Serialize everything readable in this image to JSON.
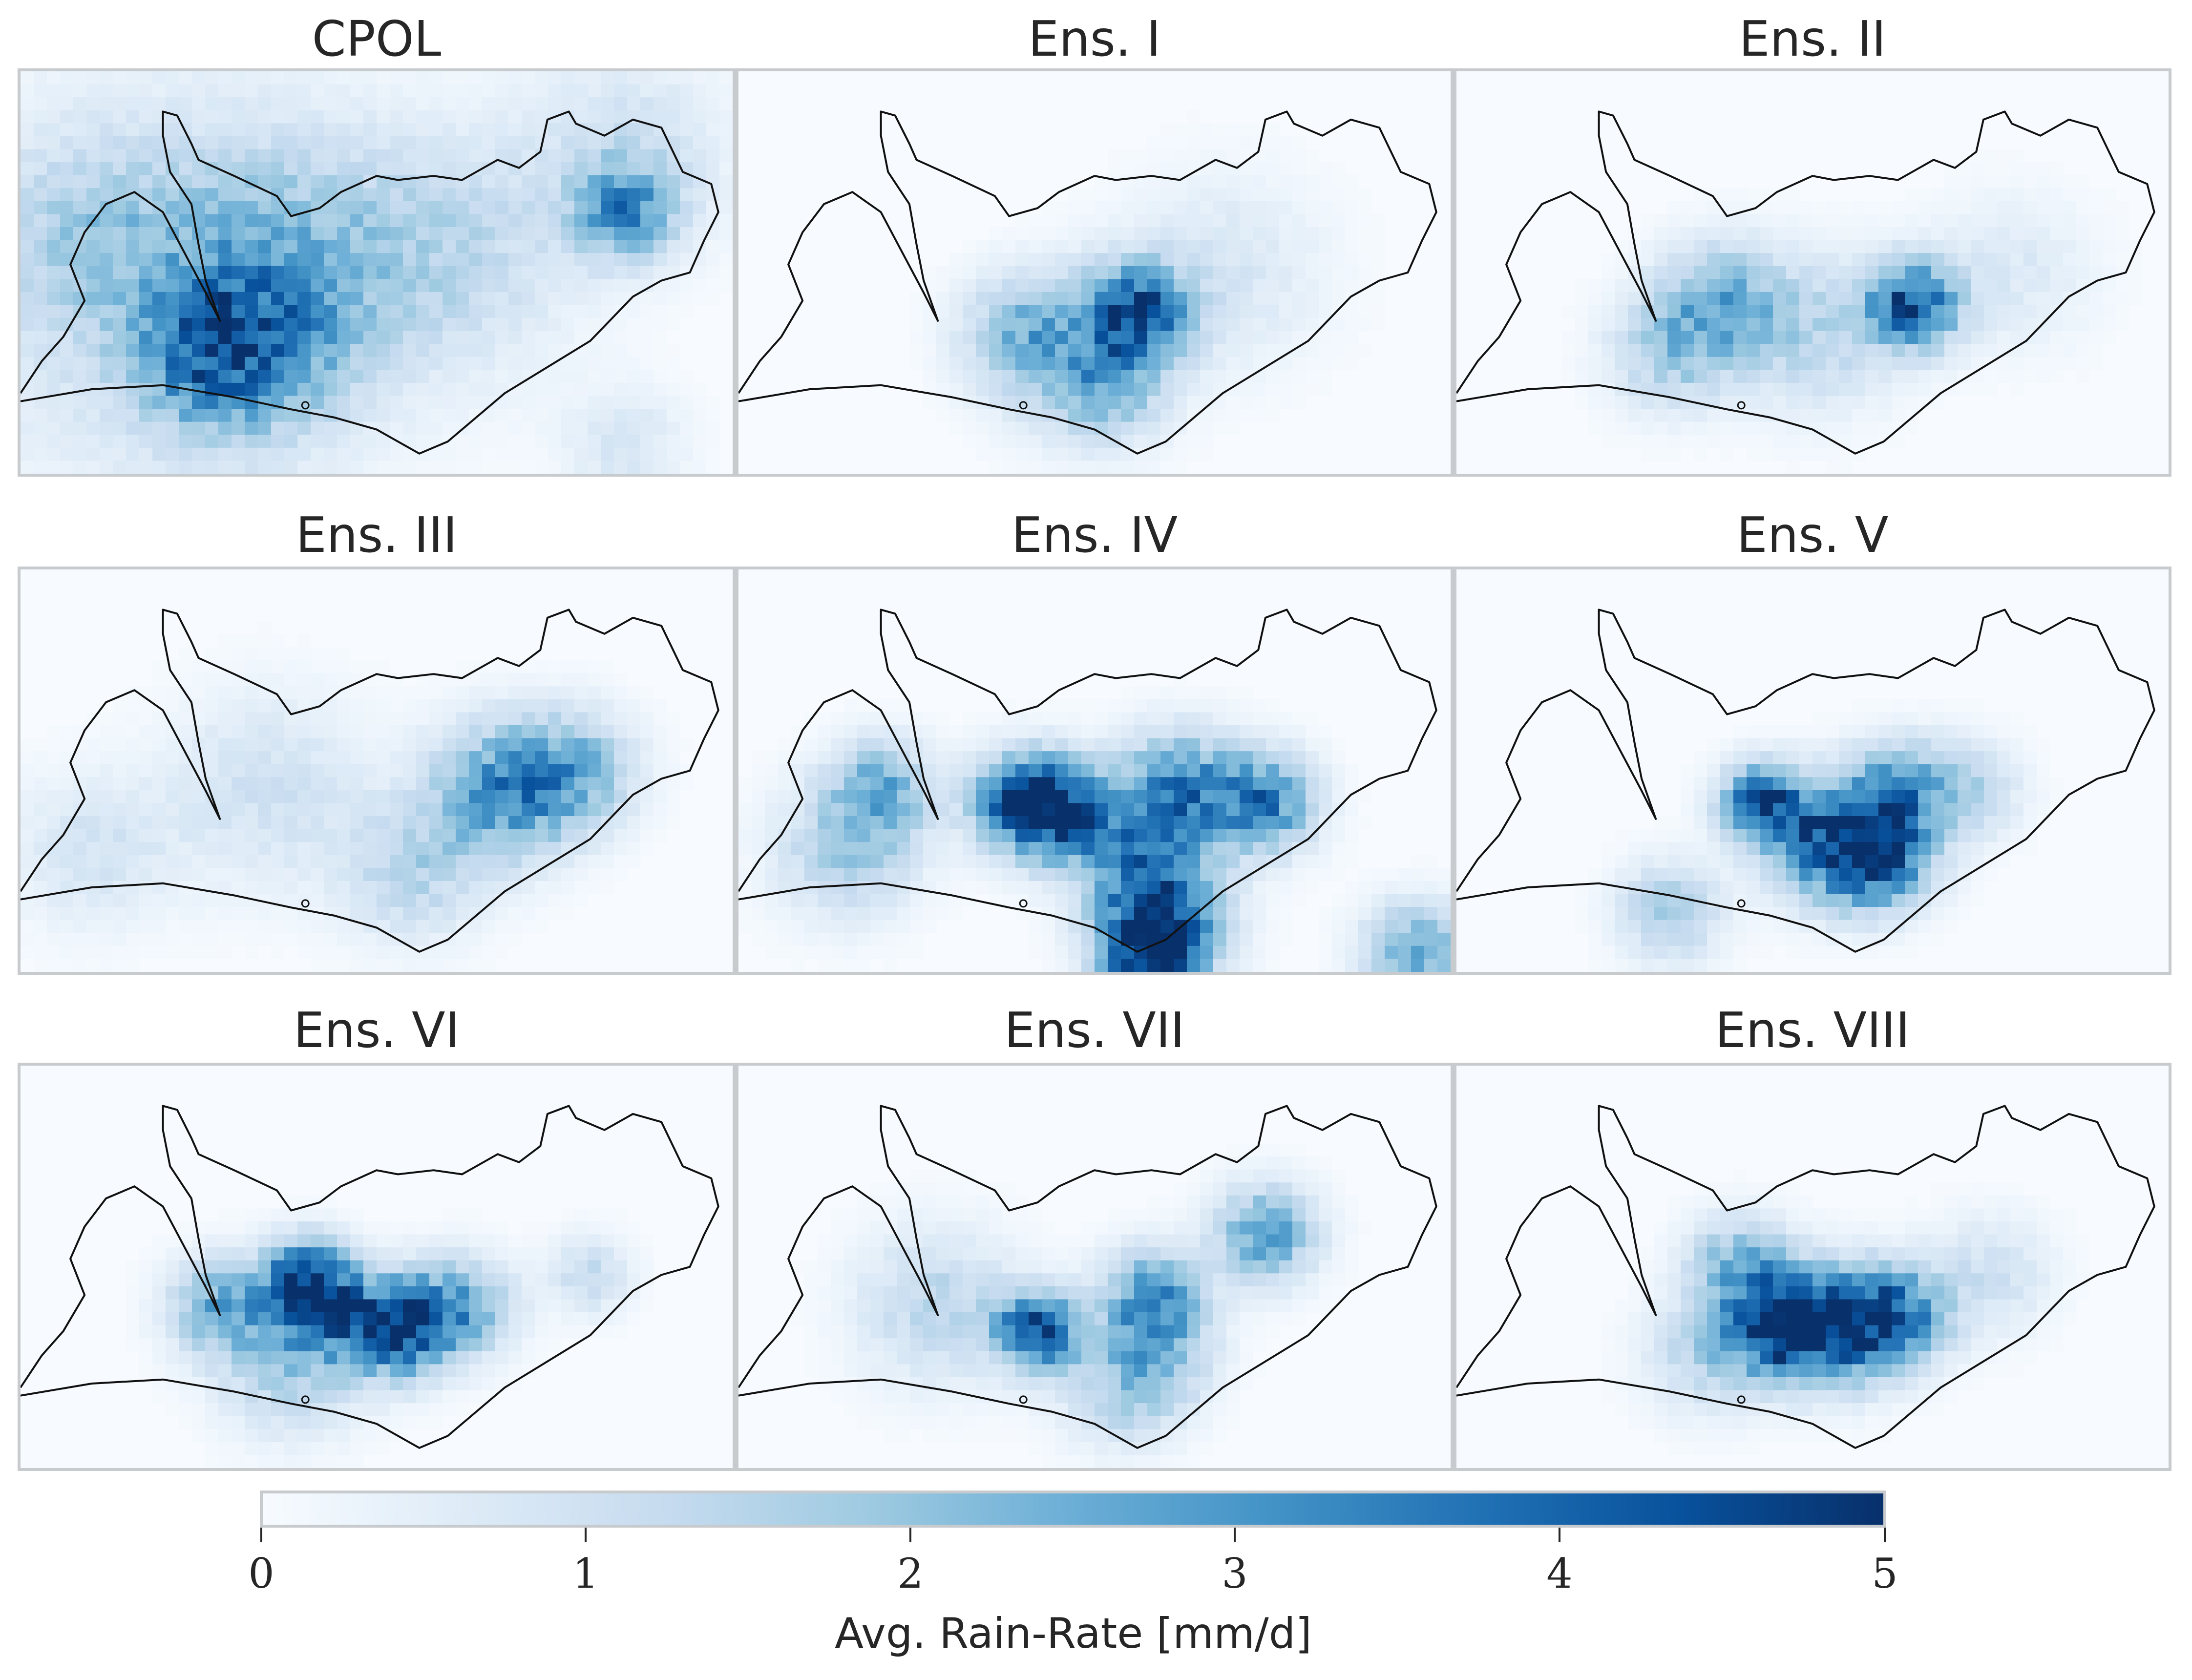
{
  "chart_data": {
    "type": "heatmap",
    "layout": "3x3 grid of map panels with shared colorbar",
    "colormap": "Blues",
    "panels": [
      {
        "title": "CPOL",
        "hotspots": [
          {
            "lon": 0.2,
            "lat": 0.55,
            "value": 1.0,
            "spread": 0.22
          },
          {
            "lon": 0.33,
            "lat": 0.68,
            "value": 2.2,
            "spread": 0.09
          },
          {
            "lon": 0.25,
            "lat": 0.72,
            "value": 1.6,
            "spread": 0.07
          },
          {
            "lon": 0.36,
            "lat": 0.45,
            "value": 1.3,
            "spread": 0.12
          },
          {
            "lon": 0.6,
            "lat": 0.45,
            "value": 1.2,
            "spread": 0.12
          },
          {
            "lon": 0.85,
            "lat": 0.35,
            "value": 2.6,
            "spread": 0.05
          },
          {
            "lon": 0.85,
            "lat": 0.2,
            "value": 1.0,
            "spread": 0.1
          },
          {
            "lon": 0.1,
            "lat": 0.4,
            "value": 1.0,
            "spread": 0.1
          },
          {
            "lon": 0.85,
            "lat": 0.93,
            "value": 0.8,
            "spread": 0.06
          }
        ]
      },
      {
        "title": "Ens. I",
        "hotspots": [
          {
            "lon": 0.56,
            "lat": 0.6,
            "value": 4.0,
            "spread": 0.05
          },
          {
            "lon": 0.4,
            "lat": 0.65,
            "value": 1.8,
            "spread": 0.06
          },
          {
            "lon": 0.48,
            "lat": 0.72,
            "value": 1.4,
            "spread": 0.08
          },
          {
            "lon": 0.52,
            "lat": 0.8,
            "value": 1.4,
            "spread": 0.05
          },
          {
            "lon": 0.68,
            "lat": 0.5,
            "value": 0.8,
            "spread": 0.1
          }
        ]
      },
      {
        "title": "Ens. II",
        "hotspots": [
          {
            "lon": 0.64,
            "lat": 0.58,
            "value": 4.2,
            "spread": 0.045
          },
          {
            "lon": 0.37,
            "lat": 0.57,
            "value": 2.2,
            "spread": 0.06
          },
          {
            "lon": 0.3,
            "lat": 0.7,
            "value": 1.6,
            "spread": 0.06
          },
          {
            "lon": 0.5,
            "lat": 0.65,
            "value": 1.4,
            "spread": 0.08
          },
          {
            "lon": 0.78,
            "lat": 0.5,
            "value": 0.7,
            "spread": 0.08
          }
        ]
      },
      {
        "title": "Ens. III",
        "hotspots": [
          {
            "lon": 0.68,
            "lat": 0.55,
            "value": 3.0,
            "spread": 0.07
          },
          {
            "lon": 0.78,
            "lat": 0.5,
            "value": 2.0,
            "spread": 0.06
          },
          {
            "lon": 0.55,
            "lat": 0.75,
            "value": 1.4,
            "spread": 0.07
          },
          {
            "lon": 0.35,
            "lat": 0.55,
            "value": 1.0,
            "spread": 0.1
          },
          {
            "lon": 0.1,
            "lat": 0.7,
            "value": 0.9,
            "spread": 0.08
          }
        ]
      },
      {
        "title": "Ens. IV",
        "hotspots": [
          {
            "lon": 0.4,
            "lat": 0.58,
            "value": 4.2,
            "spread": 0.05
          },
          {
            "lon": 0.46,
            "lat": 0.6,
            "value": 3.0,
            "spread": 0.05
          },
          {
            "lon": 0.62,
            "lat": 0.55,
            "value": 3.2,
            "spread": 0.06
          },
          {
            "lon": 0.74,
            "lat": 0.58,
            "value": 3.2,
            "spread": 0.05
          },
          {
            "lon": 0.6,
            "lat": 0.85,
            "value": 3.0,
            "spread": 0.06
          },
          {
            "lon": 0.58,
            "lat": 0.97,
            "value": 4.6,
            "spread": 0.05
          },
          {
            "lon": 0.95,
            "lat": 0.95,
            "value": 2.6,
            "spread": 0.05
          },
          {
            "lon": 0.2,
            "lat": 0.55,
            "value": 2.4,
            "spread": 0.05
          },
          {
            "lon": 0.15,
            "lat": 0.7,
            "value": 1.6,
            "spread": 0.07
          },
          {
            "lon": 0.55,
            "lat": 0.72,
            "value": 2.2,
            "spread": 0.06
          }
        ]
      },
      {
        "title": "Ens. V",
        "hotspots": [
          {
            "lon": 0.43,
            "lat": 0.58,
            "value": 4.3,
            "spread": 0.04
          },
          {
            "lon": 0.53,
            "lat": 0.68,
            "value": 4.0,
            "spread": 0.06
          },
          {
            "lon": 0.6,
            "lat": 0.72,
            "value": 3.2,
            "spread": 0.05
          },
          {
            "lon": 0.62,
            "lat": 0.55,
            "value": 2.8,
            "spread": 0.05
          },
          {
            "lon": 0.3,
            "lat": 0.85,
            "value": 1.8,
            "spread": 0.05
          },
          {
            "lon": 0.72,
            "lat": 0.55,
            "value": 1.4,
            "spread": 0.05
          }
        ]
      },
      {
        "title": "Ens. VI",
        "hotspots": [
          {
            "lon": 0.53,
            "lat": 0.65,
            "value": 4.6,
            "spread": 0.05
          },
          {
            "lon": 0.42,
            "lat": 0.6,
            "value": 3.0,
            "spread": 0.05
          },
          {
            "lon": 0.4,
            "lat": 0.52,
            "value": 3.2,
            "spread": 0.04
          },
          {
            "lon": 0.28,
            "lat": 0.6,
            "value": 2.4,
            "spread": 0.05
          },
          {
            "lon": 0.62,
            "lat": 0.6,
            "value": 2.6,
            "spread": 0.05
          },
          {
            "lon": 0.38,
            "lat": 0.75,
            "value": 1.6,
            "spread": 0.07
          },
          {
            "lon": 0.8,
            "lat": 0.52,
            "value": 1.2,
            "spread": 0.04
          }
        ]
      },
      {
        "title": "Ens. VII",
        "hotspots": [
          {
            "lon": 0.42,
            "lat": 0.66,
            "value": 4.2,
            "spread": 0.04
          },
          {
            "lon": 0.58,
            "lat": 0.58,
            "value": 3.0,
            "spread": 0.05
          },
          {
            "lon": 0.74,
            "lat": 0.42,
            "value": 2.8,
            "spread": 0.05
          },
          {
            "lon": 0.54,
            "lat": 0.8,
            "value": 1.6,
            "spread": 0.06
          },
          {
            "lon": 0.28,
            "lat": 0.6,
            "value": 1.4,
            "spread": 0.08
          },
          {
            "lon": 0.6,
            "lat": 0.72,
            "value": 1.4,
            "spread": 0.05
          }
        ]
      },
      {
        "title": "Ens. VIII",
        "hotspots": [
          {
            "lon": 0.53,
            "lat": 0.65,
            "value": 4.0,
            "spread": 0.06
          },
          {
            "lon": 0.45,
            "lat": 0.65,
            "value": 3.6,
            "spread": 0.05
          },
          {
            "lon": 0.62,
            "lat": 0.62,
            "value": 3.2,
            "spread": 0.05
          },
          {
            "lon": 0.4,
            "lat": 0.5,
            "value": 2.4,
            "spread": 0.05
          },
          {
            "lon": 0.35,
            "lat": 0.72,
            "value": 1.4,
            "spread": 0.06
          },
          {
            "lon": 0.75,
            "lat": 0.52,
            "value": 1.0,
            "spread": 0.06
          }
        ]
      }
    ],
    "colorbar": {
      "title": "Avg. Rain-Rate [mm/d]",
      "range": [
        0,
        5
      ],
      "ticks": [
        "0",
        "1",
        "2",
        "3",
        "4",
        "5"
      ],
      "colors": [
        "#f7fbff",
        "#deebf7",
        "#c6dbef",
        "#9ecae1",
        "#6baed6",
        "#4292c6",
        "#2171b5",
        "#08519c",
        "#08306b"
      ]
    }
  }
}
